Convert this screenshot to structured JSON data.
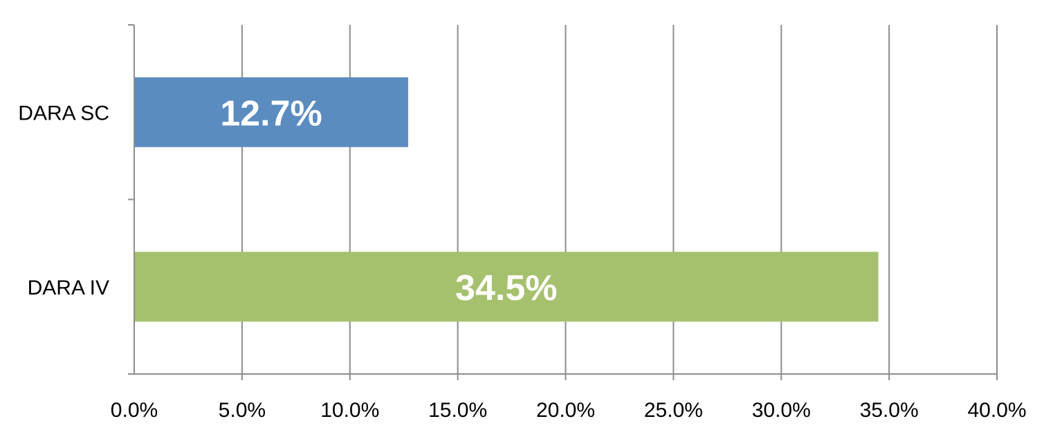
{
  "chart_data": {
    "type": "bar",
    "orientation": "horizontal",
    "categories": [
      "DARA SC",
      "DARA IV"
    ],
    "values": [
      12.7,
      34.5
    ],
    "data_labels": [
      "12.7%",
      "34.5%"
    ],
    "colors": [
      "#5b8cbf",
      "#a6c16e"
    ],
    "x_ticks": [
      0,
      5,
      10,
      15,
      20,
      25,
      30,
      35,
      40
    ],
    "x_tick_labels": [
      "0.0%",
      "5.0%",
      "10.0%",
      "15.0%",
      "20.0%",
      "25.0%",
      "30.0%",
      "35.0%",
      "40.0%"
    ],
    "xlim": [
      0,
      40
    ],
    "grid": "vertical",
    "legend": "none",
    "title": "",
    "xlabel": "",
    "ylabel": ""
  }
}
